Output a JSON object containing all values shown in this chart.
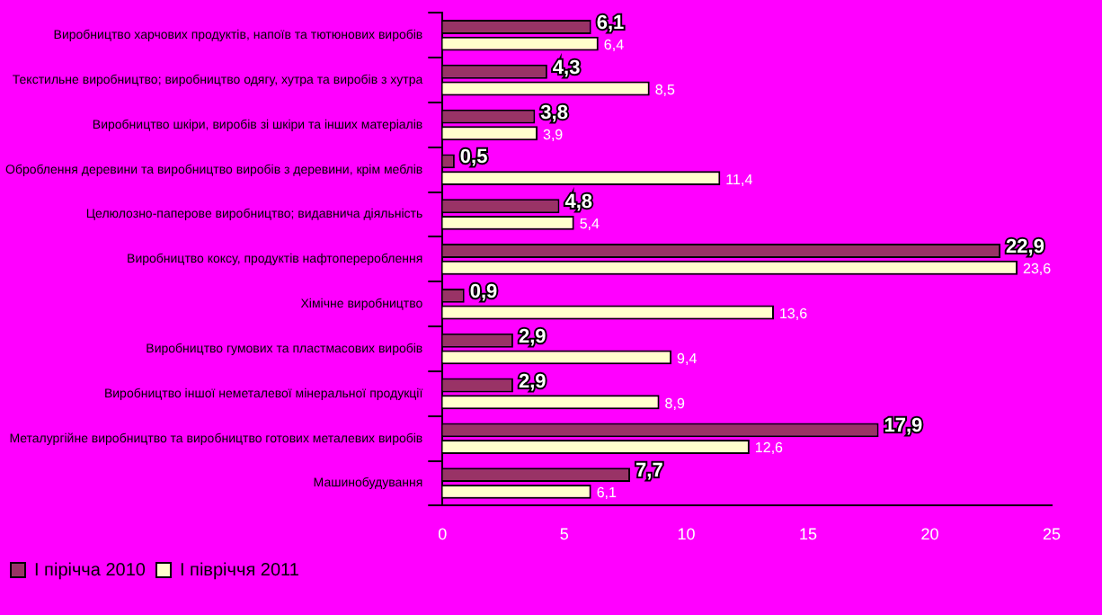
{
  "chart_data": {
    "type": "bar",
    "orientation": "horizontal",
    "categories": [
      "Виробництво харчових продуктів, напоїв та тютюнових виробів",
      "Текстильне виробництво; виробництво одягу, хутра та виробів з хутра",
      "Виробництво шкіри, виробів зі шкіри та інших матеріалів",
      "Оброблення деревини та виробництво виробів з деревини, крім меблів",
      "Целюлозно-паперове виробництво; видавнича діяльність",
      "Виробництво коксу, продуктів нафтоперероблення",
      "Хімічне виробництво",
      "Виробництво гумових та пластмасових виробів",
      "Виробництво іншої неметалевої мінеральної продукції",
      "Металургійне виробництво та виробництво готових металевих виробів",
      "Машинобудування"
    ],
    "series": [
      {
        "name": "І пірічча 2010",
        "color": "#993366",
        "values": [
          6.1,
          4.3,
          3.8,
          0.5,
          4.8,
          22.9,
          0.9,
          2.9,
          2.9,
          17.9,
          7.7
        ],
        "value_labels": [
          "6,1",
          "4,3",
          "3,8",
          "0,5",
          "4,8",
          "22,9",
          "0,9",
          "2,9",
          "2,9",
          "17,9",
          "7,7"
        ]
      },
      {
        "name": "І півріччя 2011",
        "color": "#ffffcc",
        "values": [
          6.4,
          8.5,
          3.9,
          11.4,
          5.4,
          23.6,
          13.6,
          9.4,
          8.9,
          12.6,
          6.1
        ],
        "value_labels": [
          "6,4",
          "8,5",
          "3,9",
          "11,4",
          "5,4",
          "23,6",
          "13,6",
          "9,4",
          "8,9",
          "12,6",
          "6,1"
        ]
      }
    ],
    "xlim": [
      0,
      25
    ],
    "xticks": [
      0,
      5,
      10,
      15,
      20,
      25
    ],
    "grid": false,
    "legend": "bottom"
  }
}
